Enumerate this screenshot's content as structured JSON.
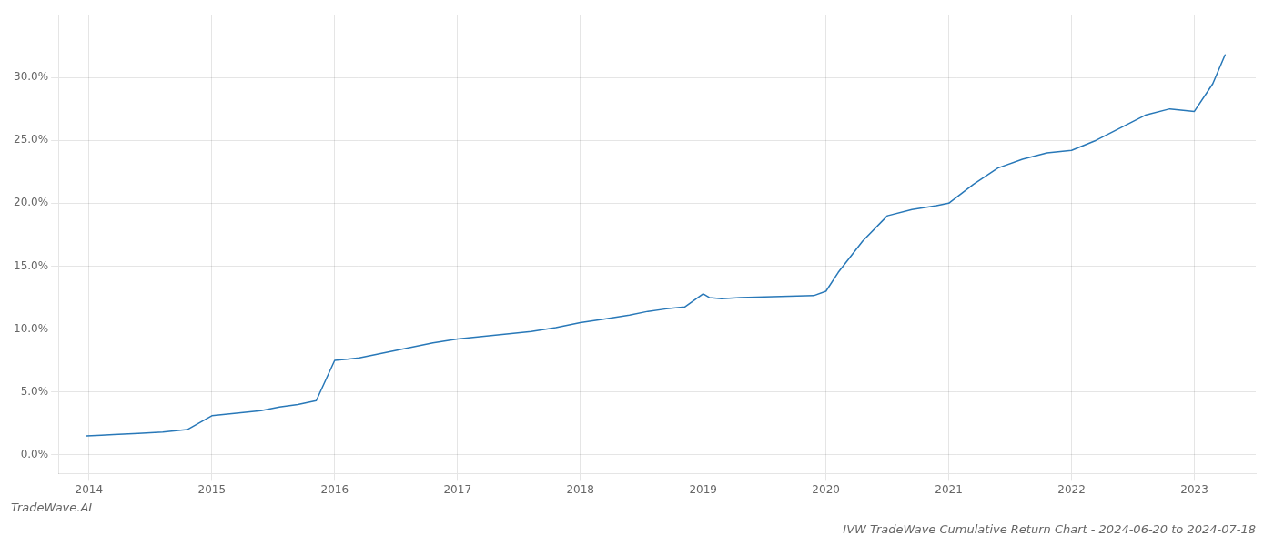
{
  "chart_data": {
    "type": "line",
    "title": "IVW TradeWave Cumulative Return Chart - 2024-06-20 to 2024-07-18",
    "annotations": [
      "TradeWave.AI"
    ],
    "color": "#2878b8",
    "grid": true,
    "x": [
      2013.98,
      2014.1,
      2014.2,
      2014.4,
      2014.6,
      2014.8,
      2015.0,
      2015.2,
      2015.4,
      2015.55,
      2015.7,
      2015.85,
      2016.0,
      2016.1,
      2016.2,
      2016.4,
      2016.6,
      2016.8,
      2017.0,
      2017.2,
      2017.4,
      2017.6,
      2017.8,
      2018.0,
      2018.2,
      2018.4,
      2018.55,
      2018.7,
      2018.85,
      2019.0,
      2019.05,
      2019.15,
      2019.3,
      2019.5,
      2019.7,
      2019.9,
      2020.0,
      2020.1,
      2020.3,
      2020.5,
      2020.7,
      2020.9,
      2021.0,
      2021.2,
      2021.4,
      2021.6,
      2021.8,
      2022.0,
      2022.2,
      2022.4,
      2022.6,
      2022.8,
      2023.0,
      2023.15,
      2023.25
    ],
    "values": [
      1.5,
      1.55,
      1.6,
      1.7,
      1.8,
      2.0,
      3.1,
      3.3,
      3.5,
      3.8,
      4.0,
      4.3,
      7.5,
      7.6,
      7.7,
      8.1,
      8.5,
      8.9,
      9.2,
      9.4,
      9.6,
      9.8,
      10.1,
      10.5,
      10.8,
      11.1,
      11.4,
      11.6,
      11.75,
      12.8,
      12.5,
      12.4,
      12.5,
      12.55,
      12.6,
      12.65,
      13.0,
      14.5,
      17.0,
      19.0,
      19.5,
      19.8,
      20.0,
      21.5,
      22.8,
      23.5,
      24.0,
      24.2,
      25.0,
      26.0,
      27.0,
      27.5,
      27.3,
      29.5,
      31.8
    ],
    "xlim": [
      2013.75,
      2023.5
    ],
    "ylim": [
      -1.5,
      35.0
    ],
    "xticks": [
      2014,
      2015,
      2016,
      2017,
      2018,
      2019,
      2020,
      2021,
      2022,
      2023
    ],
    "yticks": [
      {
        "value": 0,
        "label": "0.0%"
      },
      {
        "value": 5,
        "label": "5.0%"
      },
      {
        "value": 10,
        "label": "10.0%"
      },
      {
        "value": 15,
        "label": "15.0%"
      },
      {
        "value": 20,
        "label": "20.0%"
      },
      {
        "value": 25,
        "label": "25.0%"
      },
      {
        "value": 30,
        "label": "30.0%"
      }
    ]
  }
}
